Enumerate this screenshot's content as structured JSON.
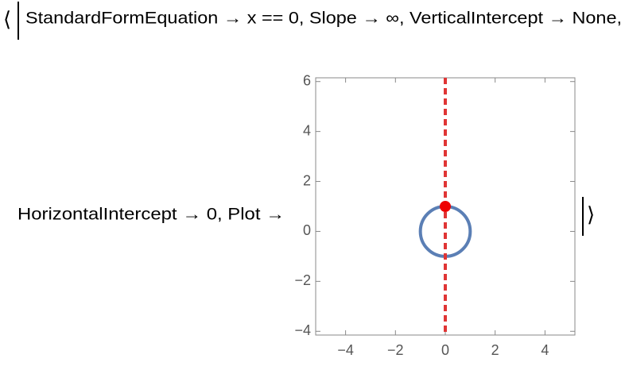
{
  "header": {
    "open": "⟨",
    "line1": "StandardFormEquation → x == 0, Slope → ∞, VerticalIntercept → None,",
    "line2": "HorizontalIntercept → 0, Plot →",
    "close": "⟩"
  },
  "chart_data": {
    "type": "plot",
    "xlim": [
      -5.2,
      5.2
    ],
    "ylim": [
      -4.15,
      6.15
    ],
    "xticks": [
      {
        "value": -4,
        "label": "−4"
      },
      {
        "value": -2,
        "label": "−2"
      },
      0,
      2,
      4
    ],
    "yticks": [
      {
        "value": -4,
        "label": "−4"
      },
      {
        "value": -2,
        "label": "−2"
      },
      0,
      2,
      4,
      6
    ],
    "circle": {
      "cx": 0,
      "cy": 0,
      "r": 1,
      "color": "#5b7fb5"
    },
    "line": {
      "x": 0,
      "color": "#e03535",
      "dashed": true
    },
    "point": {
      "x": 0,
      "y": 1,
      "color": "#ee0000"
    }
  }
}
